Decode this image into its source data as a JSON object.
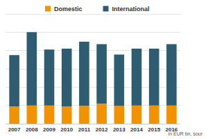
{
  "chart_data": {
    "type": "bar",
    "stacked": true,
    "categories": [
      "2007",
      "2008",
      "2009",
      "2010",
      "2011",
      "2012",
      "2013",
      "2014",
      "2015",
      "2016"
    ],
    "series": [
      {
        "name": "Domestic",
        "color": "#f39200",
        "values": [
          9.5,
          10,
          10,
          9.5,
          9.8,
          11,
          9.8,
          10,
          10,
          10
        ]
      },
      {
        "name": "International",
        "color": "#2e5d72",
        "values": [
          28,
          40,
          30.5,
          31.5,
          35,
          32.5,
          28,
          31,
          31,
          33.5
        ]
      }
    ],
    "ylim": [
      0,
      60
    ],
    "yticks": [
      0,
      10,
      20,
      30,
      40,
      50,
      60
    ],
    "grid": true,
    "legend": "top",
    "tick_labels": "x",
    "annotations": [
      "in EUR bn, sour"
    ]
  }
}
